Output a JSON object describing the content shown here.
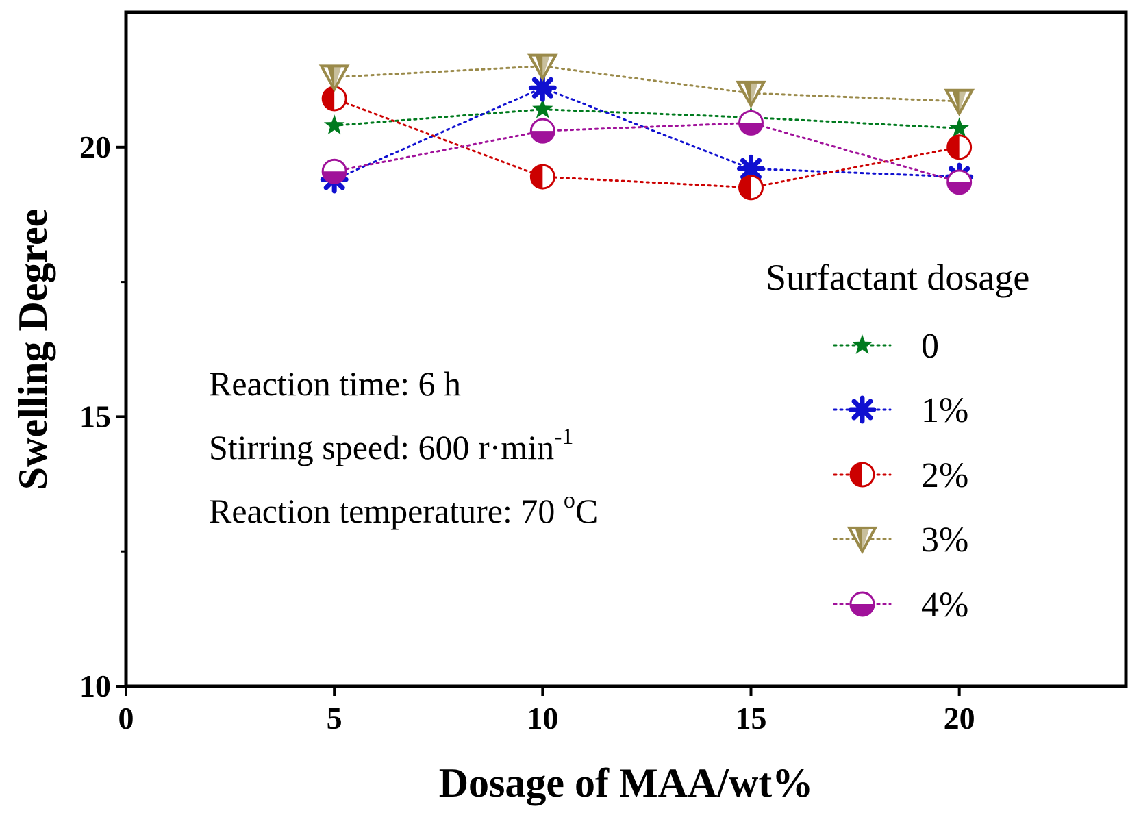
{
  "chart_data": {
    "type": "line",
    "title": "",
    "xlabel": "Dosage of MAA/wt%",
    "ylabel": "Swelling Degree",
    "xlim": [
      0,
      24
    ],
    "ylim": [
      10,
      22.5
    ],
    "xticks": [
      0,
      5,
      10,
      15,
      20
    ],
    "yticks": [
      10,
      15,
      20
    ],
    "x": [
      5,
      10,
      15,
      20
    ],
    "legend_title": "Surfactant dosage",
    "legend_position": "right",
    "series": [
      {
        "name": "0",
        "marker": "star",
        "color": "#007a1e",
        "values": [
          20.4,
          20.7,
          20.55,
          20.35
        ]
      },
      {
        "name": "1%",
        "marker": "asterisk",
        "color": "#1010d0",
        "values": [
          19.4,
          21.1,
          19.6,
          19.45
        ]
      },
      {
        "name": "2%",
        "marker": "half-left-circle",
        "color": "#cc0000",
        "values": [
          20.9,
          19.45,
          19.25,
          20.0
        ]
      },
      {
        "name": "3%",
        "marker": "down-triangle",
        "color": "#9a8a4a",
        "values": [
          21.3,
          21.5,
          21.0,
          20.85
        ]
      },
      {
        "name": "4%",
        "marker": "half-bottom-circle",
        "color": "#a0119a",
        "values": [
          19.55,
          20.3,
          20.45,
          19.35
        ]
      }
    ],
    "annotations": {
      "reaction_time": "Reaction time: 6 h",
      "stirring_speed": "Stirring speed: 600 r·min",
      "stirring_speed_sup": "-1",
      "reaction_temp": "Reaction temperature: 70 ",
      "reaction_temp_sup": "o",
      "reaction_temp_unit": "C"
    }
  }
}
